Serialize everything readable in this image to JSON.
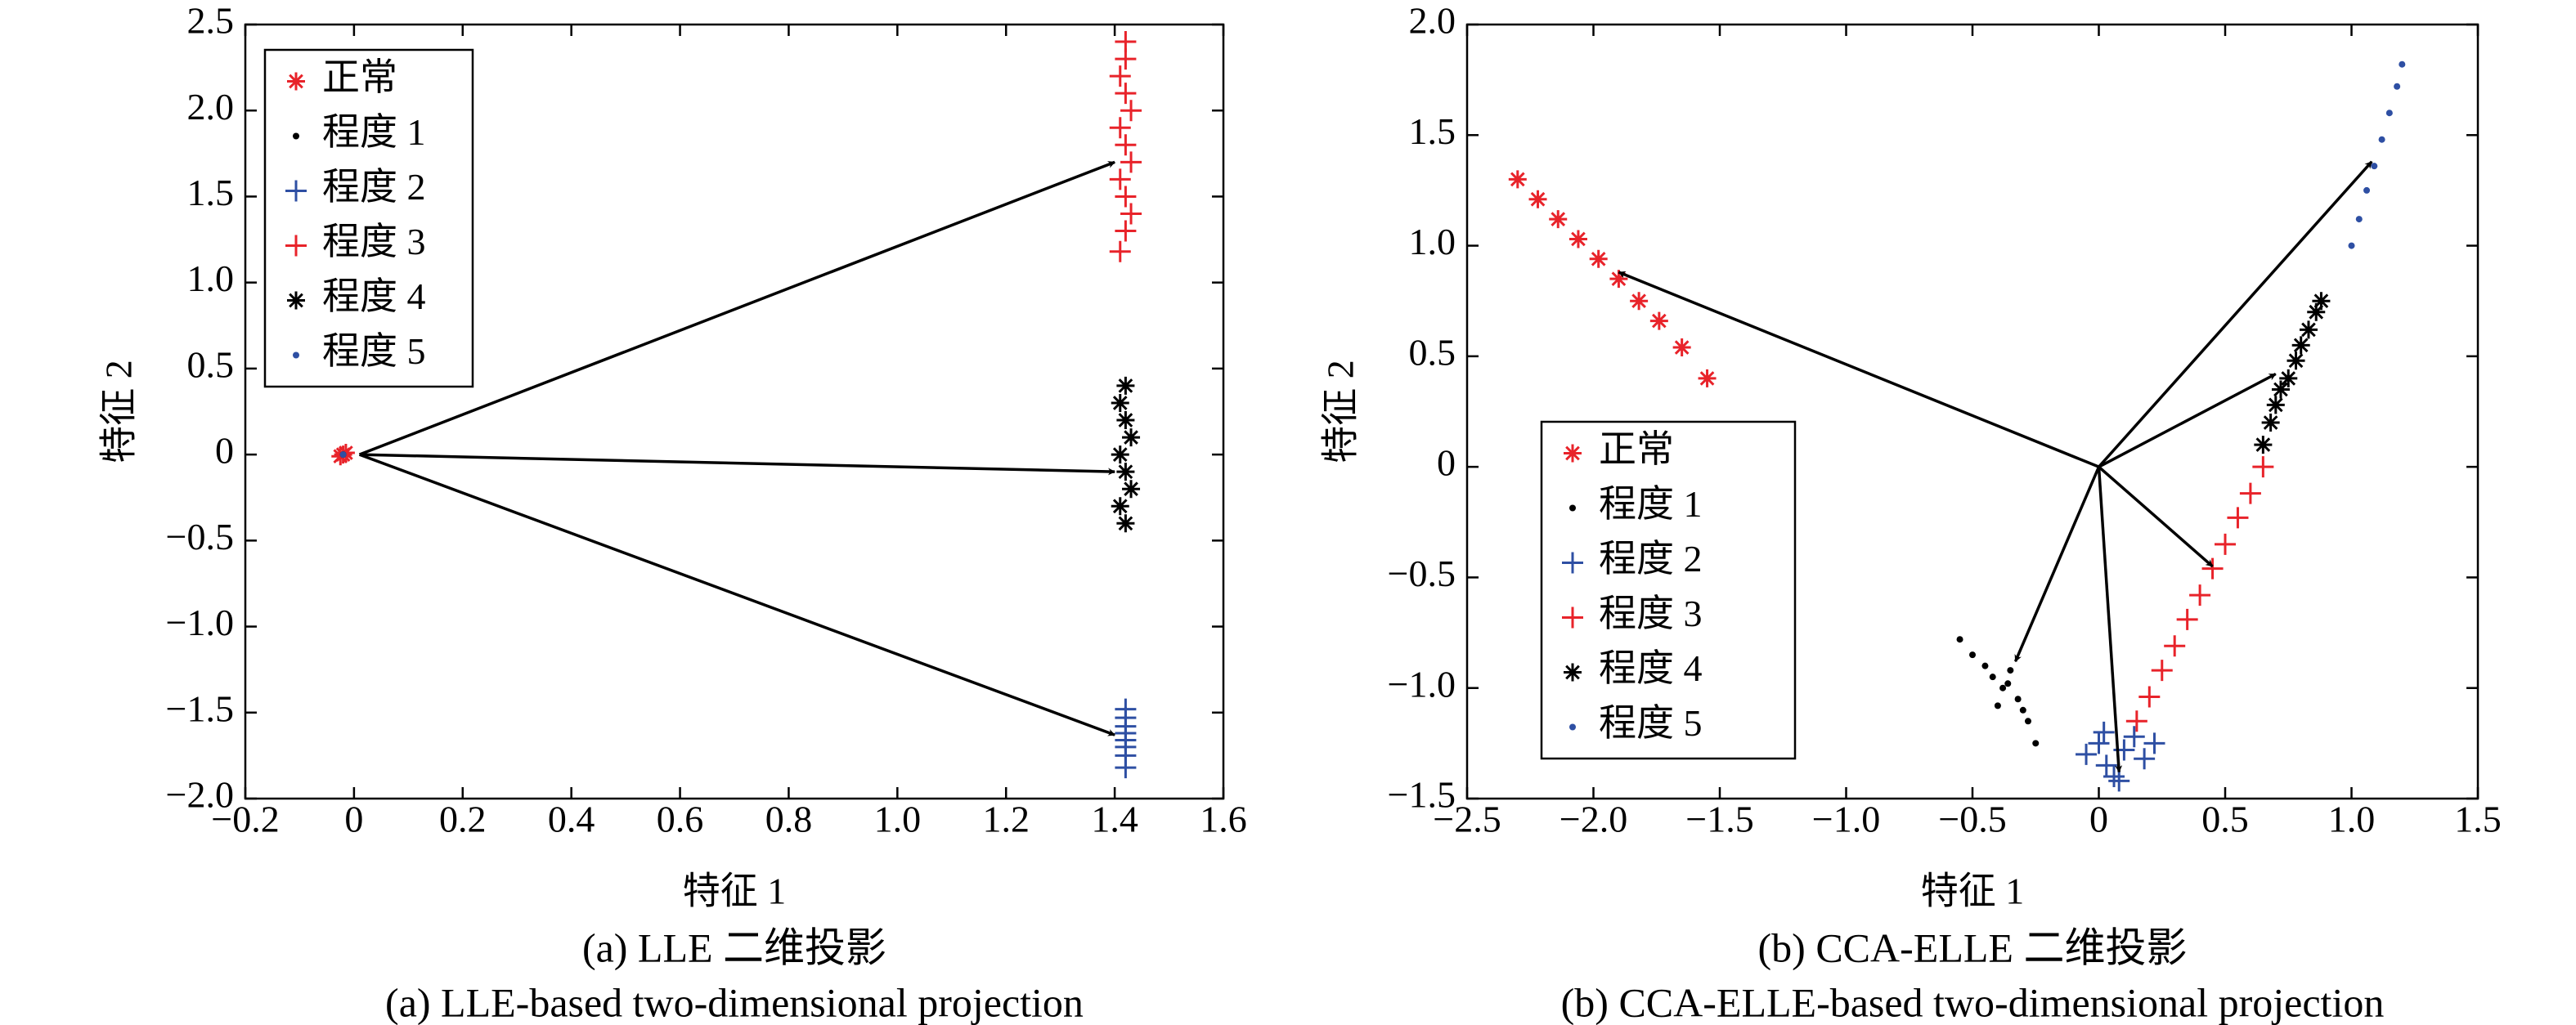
{
  "chart_data": [
    {
      "type": "scatter",
      "xlabel": "特征 1",
      "ylabel": "特征 2",
      "caption": [
        "(a) LLE 二维投影",
        "(a) LLE-based two-dimensional projection"
      ],
      "xlim": [
        -0.2,
        1.6
      ],
      "ylim": [
        -2.0,
        2.5
      ],
      "xticks": [
        {
          "value": -0.2,
          "label": "−0.2"
        },
        0,
        0.2,
        0.4,
        0.6,
        0.8,
        {
          "value": 1,
          "label": "1.0"
        },
        1.2,
        1.4,
        1.6
      ],
      "yticks": [
        {
          "value": -2,
          "label": "−2.0"
        },
        {
          "value": -1.5,
          "label": "−1.5"
        },
        {
          "value": -1,
          "label": "−1.0"
        },
        {
          "value": -0.5,
          "label": "−0.5"
        },
        0,
        0.5,
        {
          "value": 1,
          "label": "1.0"
        },
        1.5,
        {
          "value": 2,
          "label": "2.0"
        },
        2.5
      ],
      "legend": "upper left",
      "series": [
        {
          "name": "正常",
          "color": "#e8232a",
          "marker": "*",
          "x": [
            -0.02,
            -0.015,
            -0.025
          ],
          "values": [
            0,
            0.01,
            -0.01
          ]
        },
        {
          "name": "程度 1",
          "color": "#000000",
          "marker": ".",
          "x": [
            -0.02
          ],
          "values": [
            0
          ]
        },
        {
          "name": "程度 2",
          "color": "#2e4fa3",
          "marker": "+",
          "x": [
            1.42,
            1.42,
            1.42,
            1.42,
            1.42,
            1.42,
            1.42,
            1.42
          ],
          "values": [
            -1.48,
            -1.53,
            -1.58,
            -1.62,
            -1.66,
            -1.7,
            -1.75,
            -1.82
          ]
        },
        {
          "name": "程度 3",
          "color": "#e8232a",
          "marker": "+",
          "x": [
            1.41,
            1.42,
            1.43,
            1.42,
            1.41,
            1.43,
            1.42,
            1.41,
            1.43,
            1.42,
            1.41,
            1.42,
            1.42
          ],
          "values": [
            1.18,
            1.3,
            1.4,
            1.5,
            1.6,
            1.7,
            1.8,
            1.9,
            2.0,
            2.1,
            2.2,
            2.3,
            2.4
          ]
        },
        {
          "name": "程度 4",
          "color": "#000000",
          "marker": "*",
          "x": [
            1.42,
            1.41,
            1.43,
            1.42,
            1.41,
            1.43,
            1.42,
            1.41,
            1.42
          ],
          "values": [
            -0.4,
            -0.3,
            -0.2,
            -0.1,
            0,
            0.1,
            0.2,
            0.3,
            0.4
          ]
        },
        {
          "name": "程度 5",
          "color": "#2e4fa3",
          "marker": ".",
          "x": [
            -0.02
          ],
          "values": [
            0
          ]
        }
      ],
      "arrows": [
        {
          "from": [
            0.01,
            0
          ],
          "to": [
            1.4,
            1.7
          ]
        },
        {
          "from": [
            0.01,
            0
          ],
          "to": [
            1.4,
            -0.1
          ]
        },
        {
          "from": [
            0.01,
            0
          ],
          "to": [
            1.4,
            -1.63
          ]
        }
      ]
    },
    {
      "type": "scatter",
      "xlabel": "特征 1",
      "ylabel": "特征 2",
      "caption": [
        "(b) CCA-ELLE 二维投影",
        "(b) CCA-ELLE-based two-dimensional projection"
      ],
      "xlim": [
        -2.5,
        1.5
      ],
      "ylim": [
        -1.5,
        2.0
      ],
      "xticks": [
        {
          "value": -2.5,
          "label": "−2.5"
        },
        {
          "value": -2,
          "label": "−2.0"
        },
        {
          "value": -1.5,
          "label": "−1.5"
        },
        {
          "value": -1,
          "label": "−1.0"
        },
        {
          "value": -0.5,
          "label": "−0.5"
        },
        0,
        0.5,
        {
          "value": 1,
          "label": "1.0"
        },
        1.5
      ],
      "yticks": [
        {
          "value": -1.5,
          "label": "−1.5"
        },
        {
          "value": -1,
          "label": "−1.0"
        },
        {
          "value": -0.5,
          "label": "−0.5"
        },
        0,
        0.5,
        {
          "value": 1,
          "label": "1.0"
        },
        1.5,
        {
          "value": 2,
          "label": "2.0"
        }
      ],
      "legend": "lower left",
      "series": [
        {
          "name": "正常",
          "color": "#e8232a",
          "marker": "*",
          "x": [
            -2.3,
            -2.22,
            -2.14,
            -2.06,
            -1.98,
            -1.9,
            -1.82,
            -1.74,
            -1.65,
            -1.55
          ],
          "values": [
            1.3,
            1.21,
            1.12,
            1.03,
            0.94,
            0.85,
            0.75,
            0.66,
            0.54,
            0.4
          ]
        },
        {
          "name": "程度 1",
          "color": "#000000",
          "marker": ".",
          "x": [
            -0.55,
            -0.5,
            -0.45,
            -0.42,
            -0.38,
            -0.35,
            -0.32,
            -0.3,
            -0.28,
            -0.25,
            -0.4,
            -0.36
          ],
          "values": [
            -0.78,
            -0.85,
            -0.9,
            -0.95,
            -1.0,
            -0.92,
            -1.05,
            -1.1,
            -1.15,
            -1.25,
            -1.08,
            -0.98
          ]
        },
        {
          "name": "程度 2",
          "color": "#2e4fa3",
          "marker": "+",
          "x": [
            -0.05,
            0,
            0.03,
            0.06,
            0.1,
            0.14,
            0.18,
            0.22,
            0.08,
            0.02
          ],
          "values": [
            -1.3,
            -1.25,
            -1.35,
            -1.4,
            -1.28,
            -1.22,
            -1.32,
            -1.25,
            -1.42,
            -1.2
          ]
        },
        {
          "name": "程度 3",
          "color": "#e8232a",
          "marker": "+",
          "x": [
            0.15,
            0.2,
            0.25,
            0.3,
            0.35,
            0.4,
            0.45,
            0.5,
            0.55,
            0.6,
            0.65
          ],
          "values": [
            -1.15,
            -1.04,
            -0.92,
            -0.81,
            -0.69,
            -0.58,
            -0.46,
            -0.35,
            -0.23,
            -0.12,
            0
          ]
        },
        {
          "name": "程度 4",
          "color": "#000000",
          "marker": "*",
          "x": [
            0.65,
            0.68,
            0.7,
            0.72,
            0.75,
            0.78,
            0.8,
            0.83,
            0.86,
            0.88
          ],
          "values": [
            0.1,
            0.2,
            0.28,
            0.35,
            0.4,
            0.48,
            0.55,
            0.62,
            0.7,
            0.75
          ]
        },
        {
          "name": "程度 5",
          "color": "#2e4fa3",
          "marker": ".",
          "x": [
            1.0,
            1.03,
            1.06,
            1.09,
            1.12,
            1.15,
            1.18,
            1.2
          ],
          "values": [
            1.0,
            1.12,
            1.25,
            1.36,
            1.48,
            1.6,
            1.72,
            1.82
          ]
        }
      ],
      "arrows": [
        {
          "from": [
            0,
            0
          ],
          "to": [
            -1.9,
            0.88
          ]
        },
        {
          "from": [
            0,
            0
          ],
          "to": [
            1.08,
            1.38
          ]
        },
        {
          "from": [
            0,
            0
          ],
          "to": [
            0.7,
            0.42
          ]
        },
        {
          "from": [
            0,
            0
          ],
          "to": [
            0.45,
            -0.45
          ]
        },
        {
          "from": [
            0,
            0
          ],
          "to": [
            0.08,
            -1.38
          ]
        },
        {
          "from": [
            0,
            0
          ],
          "to": [
            -0.33,
            -0.88
          ]
        }
      ]
    }
  ]
}
